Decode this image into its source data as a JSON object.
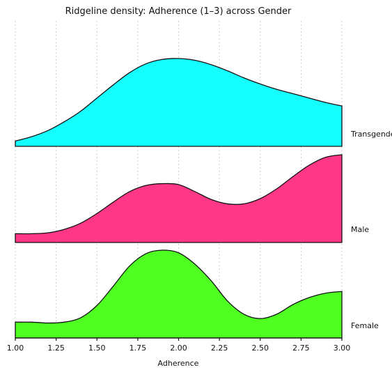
{
  "chart_data": {
    "type": "area",
    "title": "Ridgeline density: Adherence (1–3) across Gender",
    "xlabel": "Adherence",
    "ylabel": "",
    "xlim": [
      1.0,
      3.0
    ],
    "x_ticks": [
      "1.00",
      "1.25",
      "1.50",
      "1.75",
      "2.00",
      "2.25",
      "2.50",
      "2.75",
      "3.00"
    ],
    "grid": true,
    "x": [
      1.0,
      1.1,
      1.2,
      1.3,
      1.4,
      1.5,
      1.6,
      1.7,
      1.8,
      1.9,
      2.0,
      2.1,
      2.2,
      2.3,
      2.4,
      2.5,
      2.6,
      2.7,
      2.8,
      2.9,
      3.0
    ],
    "series": [
      {
        "name": "Transgender",
        "color": "#15ffff",
        "values": [
          0.06,
          0.11,
          0.18,
          0.28,
          0.4,
          0.55,
          0.7,
          0.84,
          0.94,
          0.99,
          1.0,
          0.98,
          0.93,
          0.86,
          0.78,
          0.71,
          0.65,
          0.6,
          0.55,
          0.5,
          0.46
        ]
      },
      {
        "name": "Male",
        "color": "#ff3787",
        "values": [
          0.1,
          0.1,
          0.11,
          0.15,
          0.22,
          0.33,
          0.46,
          0.58,
          0.65,
          0.67,
          0.66,
          0.58,
          0.49,
          0.44,
          0.44,
          0.5,
          0.61,
          0.75,
          0.88,
          0.97,
          1.0
        ]
      },
      {
        "name": "Female",
        "color": "#4eff21",
        "values": [
          0.18,
          0.18,
          0.17,
          0.18,
          0.23,
          0.37,
          0.59,
          0.82,
          0.96,
          1.0,
          0.97,
          0.84,
          0.65,
          0.42,
          0.27,
          0.22,
          0.27,
          0.38,
          0.46,
          0.51,
          0.53
        ]
      }
    ]
  }
}
